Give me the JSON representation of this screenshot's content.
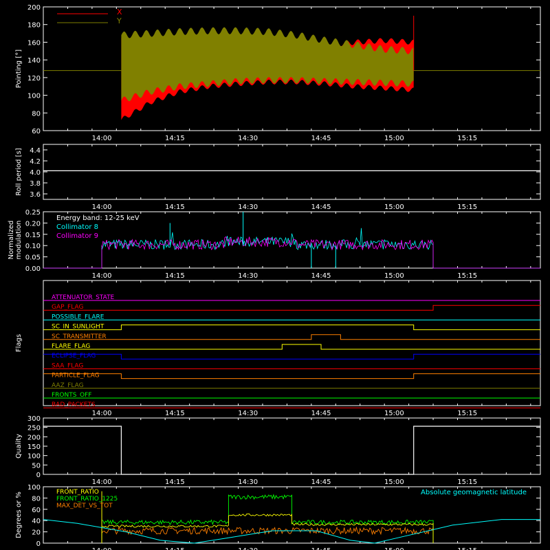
{
  "colors": {
    "background": "#000000",
    "axes": "#ffffff",
    "x_pointing": "#ff0000",
    "y_pointing": "#808000",
    "white": "#ffffff",
    "cyan": "#00ffff",
    "magenta": "#ff00ff",
    "green": "#00ff00",
    "yellow": "#ffff00",
    "orange": "#ff8000",
    "blue": "#0000ff",
    "red": "#ff0000",
    "olive": "#808000"
  },
  "time_axis": {
    "range": [
      "13:48",
      "15:30"
    ],
    "tick_labels": [
      "14:00",
      "14:15",
      "14:30",
      "14:45",
      "15:00",
      "15:15"
    ]
  },
  "chart_data": [
    {
      "type": "area",
      "panel": "pointing",
      "ylabel": "Pointing [°]",
      "ylim": [
        60,
        200
      ],
      "yticks": [
        "60",
        "80",
        "100",
        "120",
        "140",
        "160",
        "180",
        "200"
      ],
      "legend": [
        {
          "name": "X",
          "color": "#ff0000"
        },
        {
          "name": "Y",
          "color": "#808000"
        }
      ],
      "baseline": 128,
      "active_interval": [
        "14:04",
        "15:04"
      ],
      "series": [
        {
          "name": "X",
          "envelope_max": [
            165,
            160,
            155,
            152,
            150,
            151,
            153,
            157,
            160,
            162,
            160
          ],
          "envelope_min": [
            72,
            92,
            104,
            110,
            113,
            115,
            115,
            113,
            110,
            108,
            106
          ]
        },
        {
          "name": "Y",
          "envelope_max": [
            168,
            170,
            172,
            173,
            173,
            172,
            168,
            162,
            157,
            152,
            150
          ],
          "envelope_min": [
            94,
            104,
            110,
            113,
            116,
            117,
            117,
            116,
            115,
            114,
            113
          ]
        }
      ]
    },
    {
      "type": "line",
      "panel": "roll_period",
      "ylabel": "Roll period [s]",
      "ylim": [
        3.5,
        4.5
      ],
      "yticks": [
        "3.6",
        "3.8",
        "4.0",
        "4.2",
        "4.4"
      ],
      "series": [
        {
          "name": "",
          "values": [
            4.02,
            4.02
          ]
        }
      ]
    },
    {
      "type": "line",
      "panel": "modulation",
      "ylabel": [
        "Normalized",
        "modulation"
      ],
      "ylim": [
        0,
        0.25
      ],
      "yticks": [
        "0.00",
        "0.05",
        "0.10",
        "0.15",
        "0.20",
        "0.25"
      ],
      "legend_title": "Energy band: 12-25 keV",
      "legend": [
        {
          "name": "Collimator 8",
          "color": "#00ffff"
        },
        {
          "name": "Collimator 9",
          "color": "#ff00ff"
        }
      ],
      "active_interval": [
        "14:00",
        "15:08"
      ],
      "typical_value": 0.1,
      "dropouts": [
        "14:43",
        "14:48"
      ],
      "spikes": [
        {
          "t": "14:29",
          "v": 0.25
        },
        {
          "t": "14:14",
          "v": 0.2
        }
      ]
    },
    {
      "type": "line",
      "panel": "flags",
      "ylabel": "Flags",
      "flags": [
        {
          "name": "ATTENUATOR_STATE",
          "color": "#ff00ff",
          "on": []
        },
        {
          "name": "GAP_FLAG",
          "color": "#ff0000",
          "on": [
            [
              "15:08",
              "15:30"
            ]
          ]
        },
        {
          "name": "POSSIBLE_FLARE",
          "color": "#00ffff",
          "on": []
        },
        {
          "name": "SC_IN_SUNLIGHT",
          "color": "#ffff00",
          "on": [
            [
              "14:04",
              "15:04"
            ]
          ]
        },
        {
          "name": "SC_TRANSMITTER",
          "color": "#ff8000",
          "on": [
            [
              "14:43",
              "14:49"
            ]
          ]
        },
        {
          "name": "FLARE_FLAG",
          "color": "#ffff00",
          "on": [
            [
              "14:37",
              "14:45"
            ]
          ]
        },
        {
          "name": "ECLIPSE_FLAG",
          "color": "#0000ff",
          "on": [
            [
              "13:48",
              "14:04"
            ],
            [
              "15:04",
              "15:30"
            ]
          ]
        },
        {
          "name": "SAA_FLAG",
          "color": "#ff0000",
          "on": []
        },
        {
          "name": "PARTICLE_FLAG",
          "color": "#ff8000",
          "on": [
            [
              "13:48",
              "14:04"
            ],
            [
              "15:04",
              "15:30"
            ]
          ]
        },
        {
          "name": "AAZ_FLAG",
          "color": "#808000",
          "on": []
        },
        {
          "name": "FRONTS_OFF",
          "color": "#00ff00",
          "on": []
        },
        {
          "name": "BAD_PACKETS",
          "color": "#ff0000",
          "on": []
        }
      ]
    },
    {
      "type": "line",
      "panel": "quality",
      "ylabel": "Quality",
      "ylim": [
        0,
        300
      ],
      "yticks": [
        "0",
        "50",
        "100",
        "150",
        "200",
        "250",
        "300"
      ],
      "high_value": 256,
      "low_interval": [
        "14:04",
        "15:04"
      ]
    },
    {
      "type": "line",
      "panel": "ratios",
      "ylabel": "Degrees or %",
      "ylim": [
        0,
        100
      ],
      "yticks": [
        "0",
        "20",
        "40",
        "60",
        "80",
        "100"
      ],
      "legend": [
        {
          "name": "FRONT_RATIO",
          "color": "#ffff00"
        },
        {
          "name": "FRONT_RATIO_1225",
          "color": "#00ff00"
        },
        {
          "name": "MAX_DET_VS_TOT",
          "color": "#ff8000"
        }
      ],
      "annotation": "Absolute geomagnetic latitude",
      "annotation_color": "#00ffff",
      "active_interval": [
        "14:00",
        "15:08"
      ],
      "series": [
        {
          "name": "FRONT_RATIO",
          "segments": [
            {
              "from": "14:00",
              "to": "14:26",
              "value": 30
            },
            {
              "from": "14:26",
              "to": "14:39",
              "value": 50
            },
            {
              "from": "14:39",
              "to": "15:08",
              "value": 33
            }
          ]
        },
        {
          "name": "FRONT_RATIO_1225",
          "segments": [
            {
              "from": "14:00",
              "to": "14:26",
              "value": 37
            },
            {
              "from": "14:26",
              "to": "14:39",
              "value": 82
            },
            {
              "from": "14:39",
              "to": "15:08",
              "value": 37
            }
          ]
        },
        {
          "name": "MAX_DET_VS_TOT",
          "segments": [
            {
              "from": "14:00",
              "to": "15:08",
              "value": 22
            }
          ]
        },
        {
          "name": "Absolute geomagnetic latitude",
          "points": [
            [
              "13:48",
              42
            ],
            [
              "13:55",
              35
            ],
            [
              "14:05",
              20
            ],
            [
              "14:12",
              5
            ],
            [
              "14:19",
              0
            ],
            [
              "14:25",
              8
            ],
            [
              "14:35",
              22
            ],
            [
              "14:44",
              22
            ],
            [
              "14:51",
              5
            ],
            [
              "14:56",
              0
            ],
            [
              "15:02",
              12
            ],
            [
              "15:12",
              32
            ],
            [
              "15:22",
              42
            ],
            [
              "15:30",
              42
            ]
          ]
        }
      ]
    }
  ]
}
